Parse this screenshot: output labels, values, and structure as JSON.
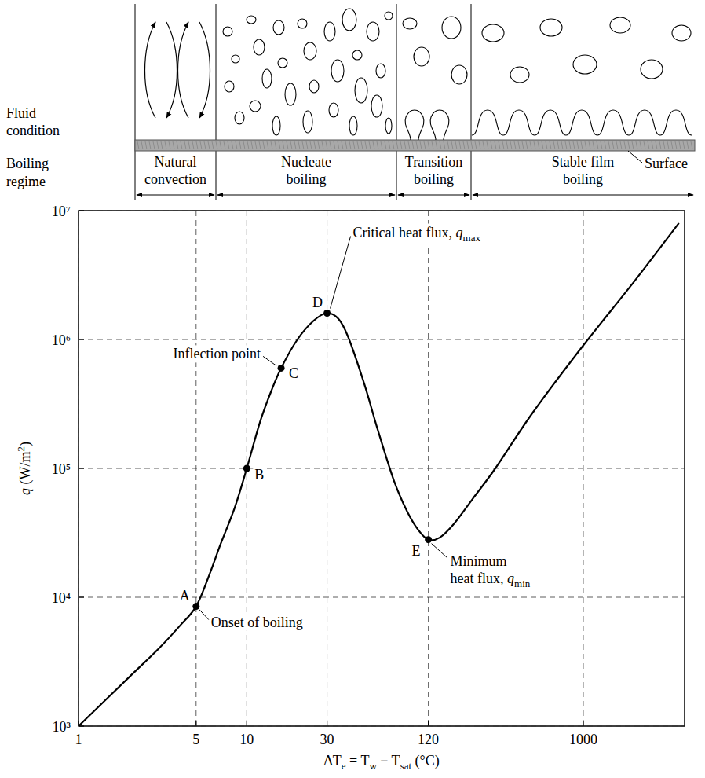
{
  "chart_data": {
    "type": "line",
    "log": true,
    "grid": true,
    "color": "#000000",
    "x_label": [
      {
        "t": "ΔT"
      },
      {
        "sub": "e"
      },
      {
        "t": " = T"
      },
      {
        "sub": "w"
      },
      {
        "t": " − T"
      },
      {
        "sub": "sat"
      },
      {
        "t": " (°C)"
      }
    ],
    "y_label": [
      {
        "t": "q",
        "italic": true
      },
      {
        "t": "  (W/m"
      },
      {
        "sup": "2"
      },
      {
        "t": ")"
      }
    ],
    "xlim": [
      1,
      4000
    ],
    "ylim": [
      1000,
      10000000
    ],
    "xticks": [
      1,
      5,
      10,
      30,
      120,
      1000
    ],
    "yticks": [
      {
        "value": 1000,
        "label": "10³"
      },
      {
        "value": 10000,
        "label": "10⁴"
      },
      {
        "value": 100000,
        "label": "10⁵"
      },
      {
        "value": 1000000,
        "label": "10⁶"
      },
      {
        "value": 10000000,
        "label": "10⁷"
      }
    ],
    "x": [
      1,
      2,
      3,
      4,
      5,
      6,
      7,
      8.5,
      10,
      12,
      14,
      16,
      20,
      25,
      30,
      35,
      40,
      50,
      60,
      75,
      90,
      105,
      120,
      140,
      170,
      220,
      300,
      500,
      1000,
      2000,
      3700
    ],
    "values": [
      1000,
      2400,
      4000,
      6000,
      8500,
      15000,
      26000,
      50000,
      100000,
      230000,
      400000,
      600000,
      1000000,
      1400000,
      1600000,
      1450000,
      1050000,
      450000,
      200000,
      80000,
      46000,
      33000,
      28000,
      29000,
      37000,
      58000,
      100000,
      270000,
      900000,
      2800000,
      8000000
    ],
    "points": [
      {
        "label": "A",
        "x": 5,
        "value": 8500,
        "annotation": [
          [
            {
              "t": "Onset of boiling"
            }
          ]
        ]
      },
      {
        "label": "B",
        "x": 10,
        "value": 100000
      },
      {
        "label": "C",
        "x": 16,
        "value": 600000,
        "annotation": [
          [
            {
              "t": "Inflection point"
            }
          ]
        ]
      },
      {
        "label": "D",
        "x": 30,
        "value": 1600000,
        "annotation": [
          [
            {
              "t": "Critical heat flux, "
            },
            {
              "t": "q",
              "italic": true
            },
            {
              "sub": "max"
            }
          ]
        ]
      },
      {
        "label": "E",
        "x": 120,
        "value": 28000,
        "annotation": [
          [
            {
              "t": "Minimum"
            }
          ],
          [
            {
              "t": "heat flux, "
            },
            {
              "t": "q",
              "italic": true
            },
            {
              "sub": "min"
            }
          ]
        ]
      }
    ]
  },
  "diagram": {
    "row_labels": [
      [
        "Fluid",
        "condition"
      ],
      [
        "Boiling",
        "regime"
      ]
    ],
    "regimes": [
      [
        "Natural",
        "convection"
      ],
      [
        "Nucleate",
        "boiling"
      ],
      [
        "Transition",
        "boiling"
      ],
      [
        "Stable film",
        "boiling"
      ]
    ],
    "surface_label": "Surface"
  }
}
